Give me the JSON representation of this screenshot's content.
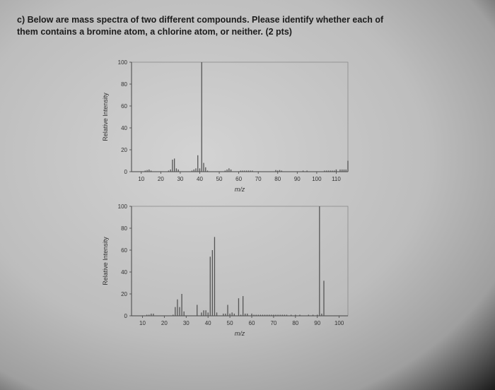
{
  "question": {
    "line1": "c) Below are mass spectra of two different compounds. Please identify whether each of",
    "line2": "them contains a bromine atom, a chlorine atom, or neither. (2 pts)"
  },
  "colors": {
    "background": "#c8c8c8",
    "axis": "#444444",
    "peak": "#555555"
  },
  "chart_data": [
    {
      "type": "bar",
      "xlabel": "m/z",
      "ylabel": "Relative Intensity",
      "xlim": [
        5,
        116
      ],
      "ylim": [
        0,
        100
      ],
      "xticks": [
        10,
        20,
        30,
        40,
        50,
        60,
        70,
        80,
        90,
        100,
        110
      ],
      "yticks": [
        0,
        20,
        40,
        60,
        80,
        100
      ],
      "grid": false,
      "peaks": [
        {
          "x": 12,
          "y": 1
        },
        {
          "x": 13,
          "y": 1.5
        },
        {
          "x": 14,
          "y": 2
        },
        {
          "x": 15,
          "y": 1
        },
        {
          "x": 24,
          "y": 1
        },
        {
          "x": 25,
          "y": 2
        },
        {
          "x": 26,
          "y": 11
        },
        {
          "x": 27,
          "y": 12
        },
        {
          "x": 28,
          "y": 3
        },
        {
          "x": 29,
          "y": 2
        },
        {
          "x": 36,
          "y": 1
        },
        {
          "x": 37,
          "y": 2
        },
        {
          "x": 38,
          "y": 3
        },
        {
          "x": 39,
          "y": 15
        },
        {
          "x": 40,
          "y": 3
        },
        {
          "x": 41,
          "y": 100
        },
        {
          "x": 42,
          "y": 8
        },
        {
          "x": 43,
          "y": 4
        },
        {
          "x": 44,
          "y": 1
        },
        {
          "x": 53,
          "y": 1
        },
        {
          "x": 54,
          "y": 2
        },
        {
          "x": 55,
          "y": 3
        },
        {
          "x": 56,
          "y": 2
        },
        {
          "x": 61,
          "y": 1
        },
        {
          "x": 62,
          "y": 1
        },
        {
          "x": 63,
          "y": 1
        },
        {
          "x": 64,
          "y": 1
        },
        {
          "x": 65,
          "y": 1
        },
        {
          "x": 66,
          "y": 1
        },
        {
          "x": 67,
          "y": 1
        },
        {
          "x": 79,
          "y": 1.5
        },
        {
          "x": 80,
          "y": 1
        },
        {
          "x": 81,
          "y": 1.5
        },
        {
          "x": 82,
          "y": 1
        },
        {
          "x": 93,
          "y": 1
        },
        {
          "x": 95,
          "y": 1
        },
        {
          "x": 104,
          "y": 1
        },
        {
          "x": 105,
          "y": 1
        },
        {
          "x": 106,
          "y": 1
        },
        {
          "x": 107,
          "y": 1
        },
        {
          "x": 108,
          "y": 1
        },
        {
          "x": 109,
          "y": 1
        },
        {
          "x": 110,
          "y": 2
        },
        {
          "x": 112,
          "y": 2
        },
        {
          "x": 113,
          "y": 2
        },
        {
          "x": 114,
          "y": 2
        },
        {
          "x": 115,
          "y": 2
        },
        {
          "x": 116,
          "y": 10
        }
      ]
    },
    {
      "type": "bar",
      "xlabel": "m/z",
      "ylabel": "Relative Intensity",
      "xlim": [
        5,
        104
      ],
      "ylim": [
        0,
        100
      ],
      "xticks": [
        10,
        20,
        30,
        40,
        50,
        60,
        70,
        80,
        90,
        100
      ],
      "yticks": [
        0,
        20,
        40,
        60,
        80,
        100
      ],
      "grid": false,
      "peaks": [
        {
          "x": 12,
          "y": 1
        },
        {
          "x": 13,
          "y": 1
        },
        {
          "x": 14,
          "y": 2
        },
        {
          "x": 15,
          "y": 2
        },
        {
          "x": 24,
          "y": 1
        },
        {
          "x": 25,
          "y": 8
        },
        {
          "x": 26,
          "y": 15
        },
        {
          "x": 27,
          "y": 8
        },
        {
          "x": 28,
          "y": 20
        },
        {
          "x": 29,
          "y": 4
        },
        {
          "x": 35,
          "y": 10
        },
        {
          "x": 37,
          "y": 3
        },
        {
          "x": 38,
          "y": 5
        },
        {
          "x": 39,
          "y": 5
        },
        {
          "x": 40,
          "y": 3
        },
        {
          "x": 41,
          "y": 54
        },
        {
          "x": 42,
          "y": 60
        },
        {
          "x": 43,
          "y": 72
        },
        {
          "x": 44,
          "y": 3
        },
        {
          "x": 47,
          "y": 2
        },
        {
          "x": 48,
          "y": 2
        },
        {
          "x": 49,
          "y": 10
        },
        {
          "x": 50,
          "y": 2
        },
        {
          "x": 51,
          "y": 3
        },
        {
          "x": 52,
          "y": 2
        },
        {
          "x": 54,
          "y": 16
        },
        {
          "x": 55,
          "y": 1
        },
        {
          "x": 56,
          "y": 18
        },
        {
          "x": 57,
          "y": 2
        },
        {
          "x": 58,
          "y": 2
        },
        {
          "x": 60,
          "y": 2
        },
        {
          "x": 61,
          "y": 1
        },
        {
          "x": 62,
          "y": 1
        },
        {
          "x": 63,
          "y": 1
        },
        {
          "x": 64,
          "y": 1
        },
        {
          "x": 65,
          "y": 1
        },
        {
          "x": 66,
          "y": 1
        },
        {
          "x": 67,
          "y": 1
        },
        {
          "x": 68,
          "y": 1
        },
        {
          "x": 69,
          "y": 1
        },
        {
          "x": 70,
          "y": 1
        },
        {
          "x": 71,
          "y": 1
        },
        {
          "x": 72,
          "y": 1
        },
        {
          "x": 73,
          "y": 1
        },
        {
          "x": 74,
          "y": 1
        },
        {
          "x": 75,
          "y": 1
        },
        {
          "x": 76,
          "y": 1
        },
        {
          "x": 78,
          "y": 1
        },
        {
          "x": 80,
          "y": 1
        },
        {
          "x": 82,
          "y": 1
        },
        {
          "x": 86,
          "y": 1
        },
        {
          "x": 88,
          "y": 1
        },
        {
          "x": 90,
          "y": 1
        },
        {
          "x": 91,
          "y": 100
        },
        {
          "x": 92,
          "y": 2
        },
        {
          "x": 93,
          "y": 32
        }
      ]
    }
  ]
}
